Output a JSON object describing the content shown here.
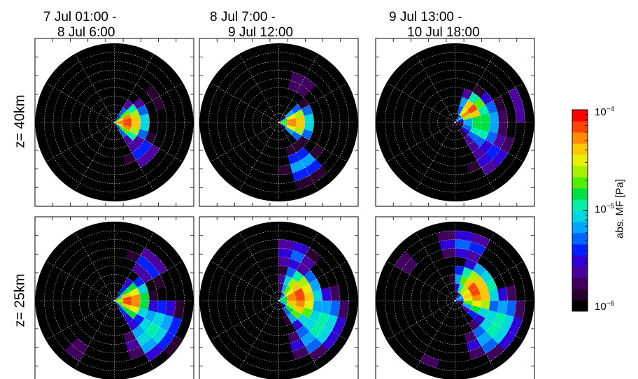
{
  "columns": [
    {
      "line1": "7 Jul 01:00 -",
      "line2": "8 Jul 6:00"
    },
    {
      "line1": "8 Jul 7:00 -",
      "line2": "9 Jul 12:00"
    },
    {
      "line1": "9 Jul 13:00 -",
      "line2": "10 Jul 18:00"
    }
  ],
  "rows": [
    {
      "label": "z= 40km"
    },
    {
      "label": "z= 25km"
    }
  ],
  "colorbar": {
    "title": "abs. MF [Pa]",
    "tick_top": "10",
    "tick_top_exp": "−4",
    "tick_mid": "10",
    "tick_mid_exp": "−5",
    "tick_bottom": "10",
    "tick_bottom_exp": "−6",
    "scale": "log",
    "range": [
      1e-06,
      0.0001
    ],
    "colormap": [
      "#000000",
      "#2a0030",
      "#3f005e",
      "#4b00a0",
      "#3000d8",
      "#0020ff",
      "#0064ff",
      "#00a6ff",
      "#00d8e0",
      "#00f0a8",
      "#00e040",
      "#50f000",
      "#a8f000",
      "#e8f000",
      "#ffc800",
      "#ff8c00",
      "#ff4600",
      "#ff0000"
    ]
  },
  "chart_data": {
    "type": "heatmap",
    "projection": "polar",
    "value_scale": "log10",
    "vmin": 1e-06,
    "vmax": 0.0001,
    "grid": true,
    "n_rings": 9,
    "n_sectors": 24,
    "panels": [
      {
        "row": "z= 40km",
        "column": "7 Jul 01:00 - 8 Jul 6:00",
        "blobs": [
          {
            "angle_deg": 0,
            "angle_width": 55,
            "r_peak": 1.3,
            "r_width": 2.6,
            "peak_log": -4.05
          },
          {
            "angle_deg": -45,
            "angle_width": 35,
            "r_peak": 4.5,
            "r_width": 2.2,
            "peak_log": -5.3
          },
          {
            "angle_deg": 30,
            "angle_width": 30,
            "r_peak": 5.5,
            "r_width": 2.0,
            "peak_log": -5.85
          },
          {
            "angle_deg": -95,
            "angle_width": 12,
            "r_peak": 6.5,
            "r_width": 1.2,
            "peak_log": -5.95
          }
        ]
      },
      {
        "row": "z= 40km",
        "column": "8 Jul 7:00 - 9 Jul 12:00",
        "blobs": [
          {
            "angle_deg": 0,
            "angle_width": 45,
            "r_peak": 1.8,
            "r_width": 2.2,
            "peak_log": -4.15
          },
          {
            "angle_deg": -60,
            "angle_width": 30,
            "r_peak": 5.5,
            "r_width": 2.8,
            "peak_log": -5.1
          },
          {
            "angle_deg": 60,
            "angle_width": 20,
            "r_peak": 5.0,
            "r_width": 2.0,
            "peak_log": -5.5
          },
          {
            "angle_deg": 88,
            "angle_width": 10,
            "r_peak": 8.0,
            "r_width": 1.2,
            "peak_log": -5.9
          }
        ]
      },
      {
        "row": "z= 40km",
        "column": "9 Jul 13:00 - 10 Jul 18:00",
        "blobs": [
          {
            "angle_deg": 38,
            "angle_width": 35,
            "r_peak": 2.2,
            "r_width": 2.0,
            "peak_log": -4.1
          },
          {
            "angle_deg": 0,
            "angle_width": 70,
            "r_peak": 3.0,
            "r_width": 3.0,
            "peak_log": -4.8
          },
          {
            "angle_deg": -40,
            "angle_width": 45,
            "r_peak": 5.5,
            "r_width": 3.0,
            "peak_log": -5.4
          },
          {
            "angle_deg": 15,
            "angle_width": 25,
            "r_peak": 7.5,
            "r_width": 1.5,
            "peak_log": -5.5
          }
        ]
      },
      {
        "row": "z= 25km",
        "column": "7 Jul 01:00 - 8 Jul 6:00",
        "blobs": [
          {
            "angle_deg": 0,
            "angle_width": 55,
            "r_peak": 1.8,
            "r_width": 2.4,
            "peak_log": -4.1
          },
          {
            "angle_deg": -35,
            "angle_width": 45,
            "r_peak": 5.5,
            "r_width": 3.5,
            "peak_log": -4.9
          },
          {
            "angle_deg": 45,
            "angle_width": 40,
            "r_peak": 5.5,
            "r_width": 3.0,
            "peak_log": -5.4
          },
          {
            "angle_deg": -130,
            "angle_width": 20,
            "r_peak": 7.0,
            "r_width": 1.5,
            "peak_log": -5.6
          },
          {
            "angle_deg": 175,
            "angle_width": 10,
            "r_peak": 8.0,
            "r_width": 1.0,
            "peak_log": -5.9
          }
        ]
      },
      {
        "row": "z= 25km",
        "column": "8 Jul 7:00 - 9 Jul 12:00",
        "blobs": [
          {
            "angle_deg": 10,
            "angle_width": 70,
            "r_peak": 2.3,
            "r_width": 2.6,
            "peak_log": -4.1
          },
          {
            "angle_deg": -30,
            "angle_width": 55,
            "r_peak": 5.5,
            "r_width": 3.0,
            "peak_log": -4.9
          },
          {
            "angle_deg": 70,
            "angle_width": 35,
            "r_peak": 5.5,
            "r_width": 2.5,
            "peak_log": -5.3
          },
          {
            "angle_deg": 135,
            "angle_width": 25,
            "r_peak": 7.0,
            "r_width": 1.6,
            "peak_log": -5.7
          }
        ]
      },
      {
        "row": "z= 25km",
        "column": "9 Jul 13:00 - 10 Jul 18:00",
        "blobs": [
          {
            "angle_deg": 25,
            "angle_width": 65,
            "r_peak": 2.6,
            "r_width": 2.4,
            "peak_log": -4.1
          },
          {
            "angle_deg": -30,
            "angle_width": 55,
            "r_peak": 5.5,
            "r_width": 3.0,
            "peak_log": -4.9
          },
          {
            "angle_deg": 80,
            "angle_width": 40,
            "r_peak": 6.5,
            "r_width": 2.5,
            "peak_log": -5.3
          },
          {
            "angle_deg": 140,
            "angle_width": 30,
            "r_peak": 7.0,
            "r_width": 1.5,
            "peak_log": -5.6
          },
          {
            "angle_deg": -115,
            "angle_width": 20,
            "r_peak": 7.5,
            "r_width": 1.5,
            "peak_log": -5.7
          }
        ]
      }
    ]
  }
}
